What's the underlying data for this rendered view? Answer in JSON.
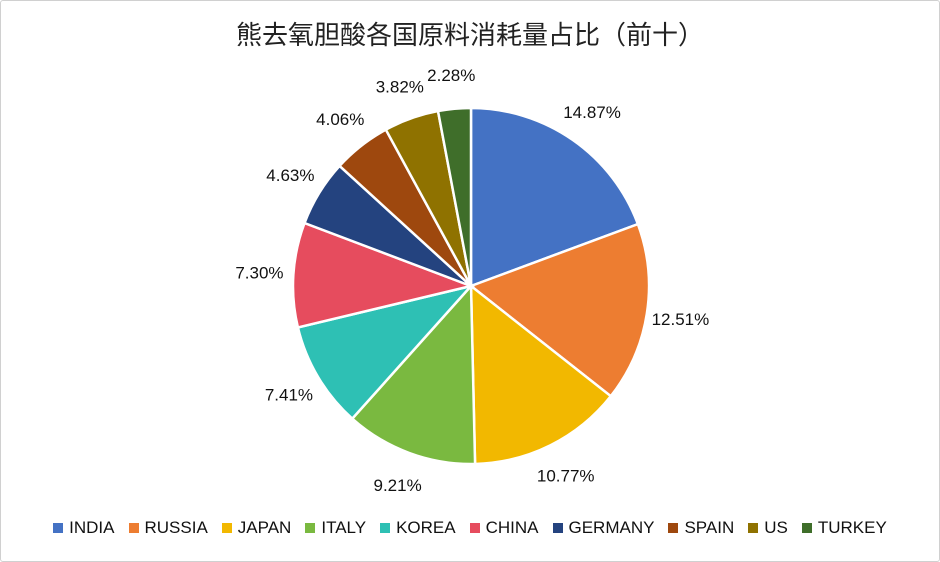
{
  "chart_data": {
    "type": "pie",
    "title": "熊去氧胆酸各国原料消耗量占比（前十）",
    "categories": [
      "INDIA",
      "RUSSIA",
      "JAPAN",
      "ITALY",
      "KOREA",
      "CHINA",
      "GERMANY",
      "SPAIN",
      "US",
      "TURKEY"
    ],
    "values": [
      14.87,
      12.51,
      10.77,
      9.21,
      7.41,
      7.3,
      4.63,
      4.06,
      3.82,
      2.28
    ],
    "data_labels": [
      "14.87%",
      "12.51%",
      "10.77%",
      "9.21%",
      "7.41%",
      "7.30%",
      "4.63%",
      "4.06%",
      "3.82%",
      "2.28%"
    ],
    "colors": [
      "#4472C4",
      "#ED7D31",
      "#F2B800",
      "#7AB940",
      "#2EC0B4",
      "#E64C5E",
      "#24437F",
      "#9E480E",
      "#8F7200",
      "#3F6E2A"
    ],
    "start_angle": "top, clockwise",
    "legend_position": "bottom"
  }
}
